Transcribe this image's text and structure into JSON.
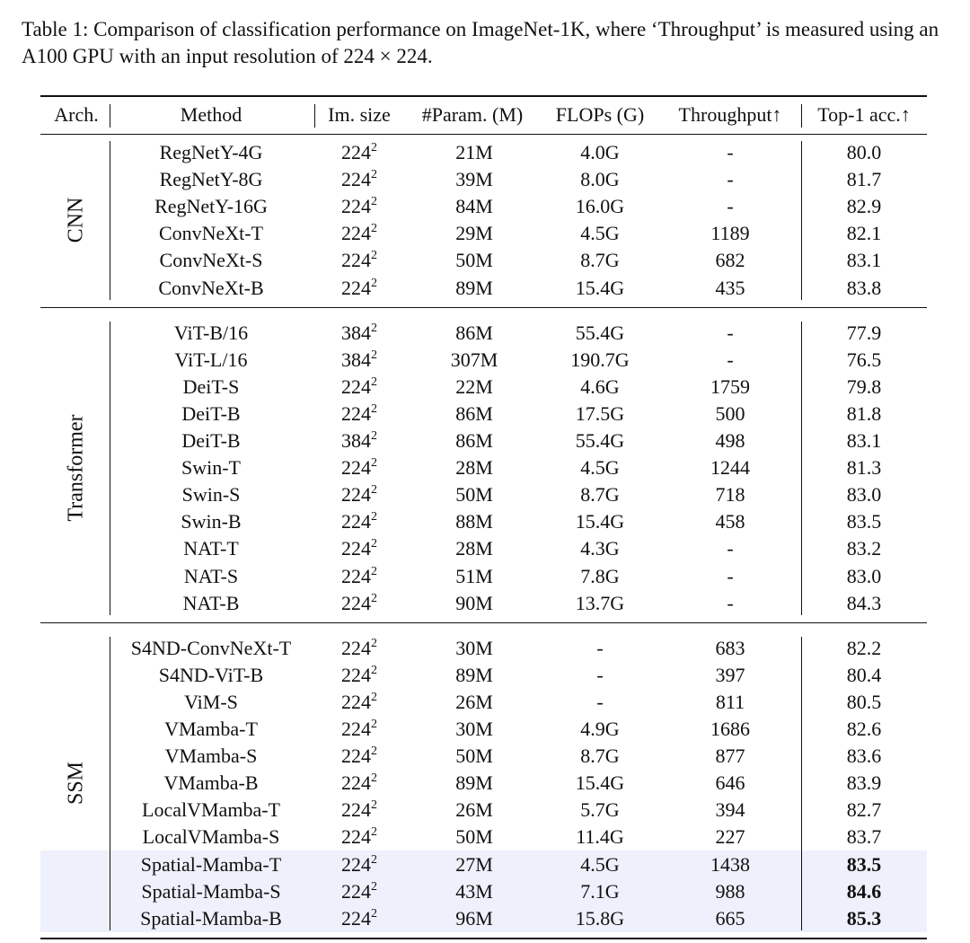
{
  "caption": "Table 1: Comparison of classification performance on ImageNet-1K, where ‘Throughput’ is measured using an A100 GPU with an input resolution of 224 × 224.",
  "table": {
    "header": [
      "Arch.",
      "Method",
      "Im. size",
      "#Param. (M)",
      "FLOPs (G)",
      "Throughput↑",
      "Top-1 acc.↑"
    ],
    "groups": [
      {
        "arch": "CNN",
        "rows": [
          {
            "cells": [
              "RegNetY-4G",
              [
                "224",
                "2"
              ],
              "21M",
              "4.0G",
              "-",
              "80.0"
            ]
          },
          {
            "cells": [
              "RegNetY-8G",
              [
                "224",
                "2"
              ],
              "39M",
              "8.0G",
              "-",
              "81.7"
            ]
          },
          {
            "cells": [
              "RegNetY-16G",
              [
                "224",
                "2"
              ],
              "84M",
              "16.0G",
              "-",
              "82.9"
            ]
          },
          {
            "cells": [
              "ConvNeXt-T",
              [
                "224",
                "2"
              ],
              "29M",
              "4.5G",
              "1189",
              "82.1"
            ]
          },
          {
            "cells": [
              "ConvNeXt-S",
              [
                "224",
                "2"
              ],
              "50M",
              "8.7G",
              "682",
              "83.1"
            ]
          },
          {
            "cells": [
              "ConvNeXt-B",
              [
                "224",
                "2"
              ],
              "89M",
              "15.4G",
              "435",
              "83.8"
            ]
          }
        ]
      },
      {
        "arch": "Transformer",
        "rows": [
          {
            "cells": [
              "ViT-B/16",
              [
                "384",
                "2"
              ],
              "86M",
              "55.4G",
              "-",
              "77.9"
            ]
          },
          {
            "cells": [
              "ViT-L/16",
              [
                "384",
                "2"
              ],
              "307M",
              "190.7G",
              "-",
              "76.5"
            ]
          },
          {
            "cells": [
              "DeiT-S",
              [
                "224",
                "2"
              ],
              "22M",
              "4.6G",
              "1759",
              "79.8"
            ]
          },
          {
            "cells": [
              "DeiT-B",
              [
                "224",
                "2"
              ],
              "86M",
              "17.5G",
              "500",
              "81.8"
            ]
          },
          {
            "cells": [
              "DeiT-B",
              [
                "384",
                "2"
              ],
              "86M",
              "55.4G",
              "498",
              "83.1"
            ]
          },
          {
            "cells": [
              "Swin-T",
              [
                "224",
                "2"
              ],
              "28M",
              "4.5G",
              "1244",
              "81.3"
            ]
          },
          {
            "cells": [
              "Swin-S",
              [
                "224",
                "2"
              ],
              "50M",
              "8.7G",
              "718",
              "83.0"
            ]
          },
          {
            "cells": [
              "Swin-B",
              [
                "224",
                "2"
              ],
              "88M",
              "15.4G",
              "458",
              "83.5"
            ]
          },
          {
            "cells": [
              "NAT-T",
              [
                "224",
                "2"
              ],
              "28M",
              "4.3G",
              "-",
              "83.2"
            ]
          },
          {
            "cells": [
              "NAT-S",
              [
                "224",
                "2"
              ],
              "51M",
              "7.8G",
              "-",
              "83.0"
            ]
          },
          {
            "cells": [
              "NAT-B",
              [
                "224",
                "2"
              ],
              "90M",
              "13.7G",
              "-",
              "84.3"
            ]
          }
        ]
      },
      {
        "arch": "SSM",
        "rows": [
          {
            "cells": [
              "S4ND-ConvNeXt-T",
              [
                "224",
                "2"
              ],
              "30M",
              "-",
              "683",
              "82.2"
            ]
          },
          {
            "cells": [
              "S4ND-ViT-B",
              [
                "224",
                "2"
              ],
              "89M",
              "-",
              "397",
              "80.4"
            ]
          },
          {
            "cells": [
              "ViM-S",
              [
                "224",
                "2"
              ],
              "26M",
              "-",
              "811",
              "80.5"
            ]
          },
          {
            "cells": [
              "VMamba-T",
              [
                "224",
                "2"
              ],
              "30M",
              "4.9G",
              "1686",
              "82.6"
            ]
          },
          {
            "cells": [
              "VMamba-S",
              [
                "224",
                "2"
              ],
              "50M",
              "8.7G",
              "877",
              "83.6"
            ]
          },
          {
            "cells": [
              "VMamba-B",
              [
                "224",
                "2"
              ],
              "89M",
              "15.4G",
              "646",
              "83.9"
            ]
          },
          {
            "cells": [
              "LocalVMamba-T",
              [
                "224",
                "2"
              ],
              "26M",
              "5.7G",
              "394",
              "82.7"
            ]
          },
          {
            "cells": [
              "LocalVMamba-S",
              [
                "224",
                "2"
              ],
              "50M",
              "11.4G",
              "227",
              "83.7"
            ]
          },
          {
            "cells": [
              "Spatial-Mamba-T",
              [
                "224",
                "2"
              ],
              "27M",
              "4.5G",
              "1438",
              "83.5"
            ],
            "highlighted": true
          },
          {
            "cells": [
              "Spatial-Mamba-S",
              [
                "224",
                "2"
              ],
              "43M",
              "7.1G",
              "988",
              "84.6"
            ],
            "highlighted": true
          },
          {
            "cells": [
              "Spatial-Mamba-B",
              [
                "224",
                "2"
              ],
              "96M",
              "15.8G",
              "665",
              "85.3"
            ],
            "highlighted": true
          }
        ]
      }
    ]
  }
}
